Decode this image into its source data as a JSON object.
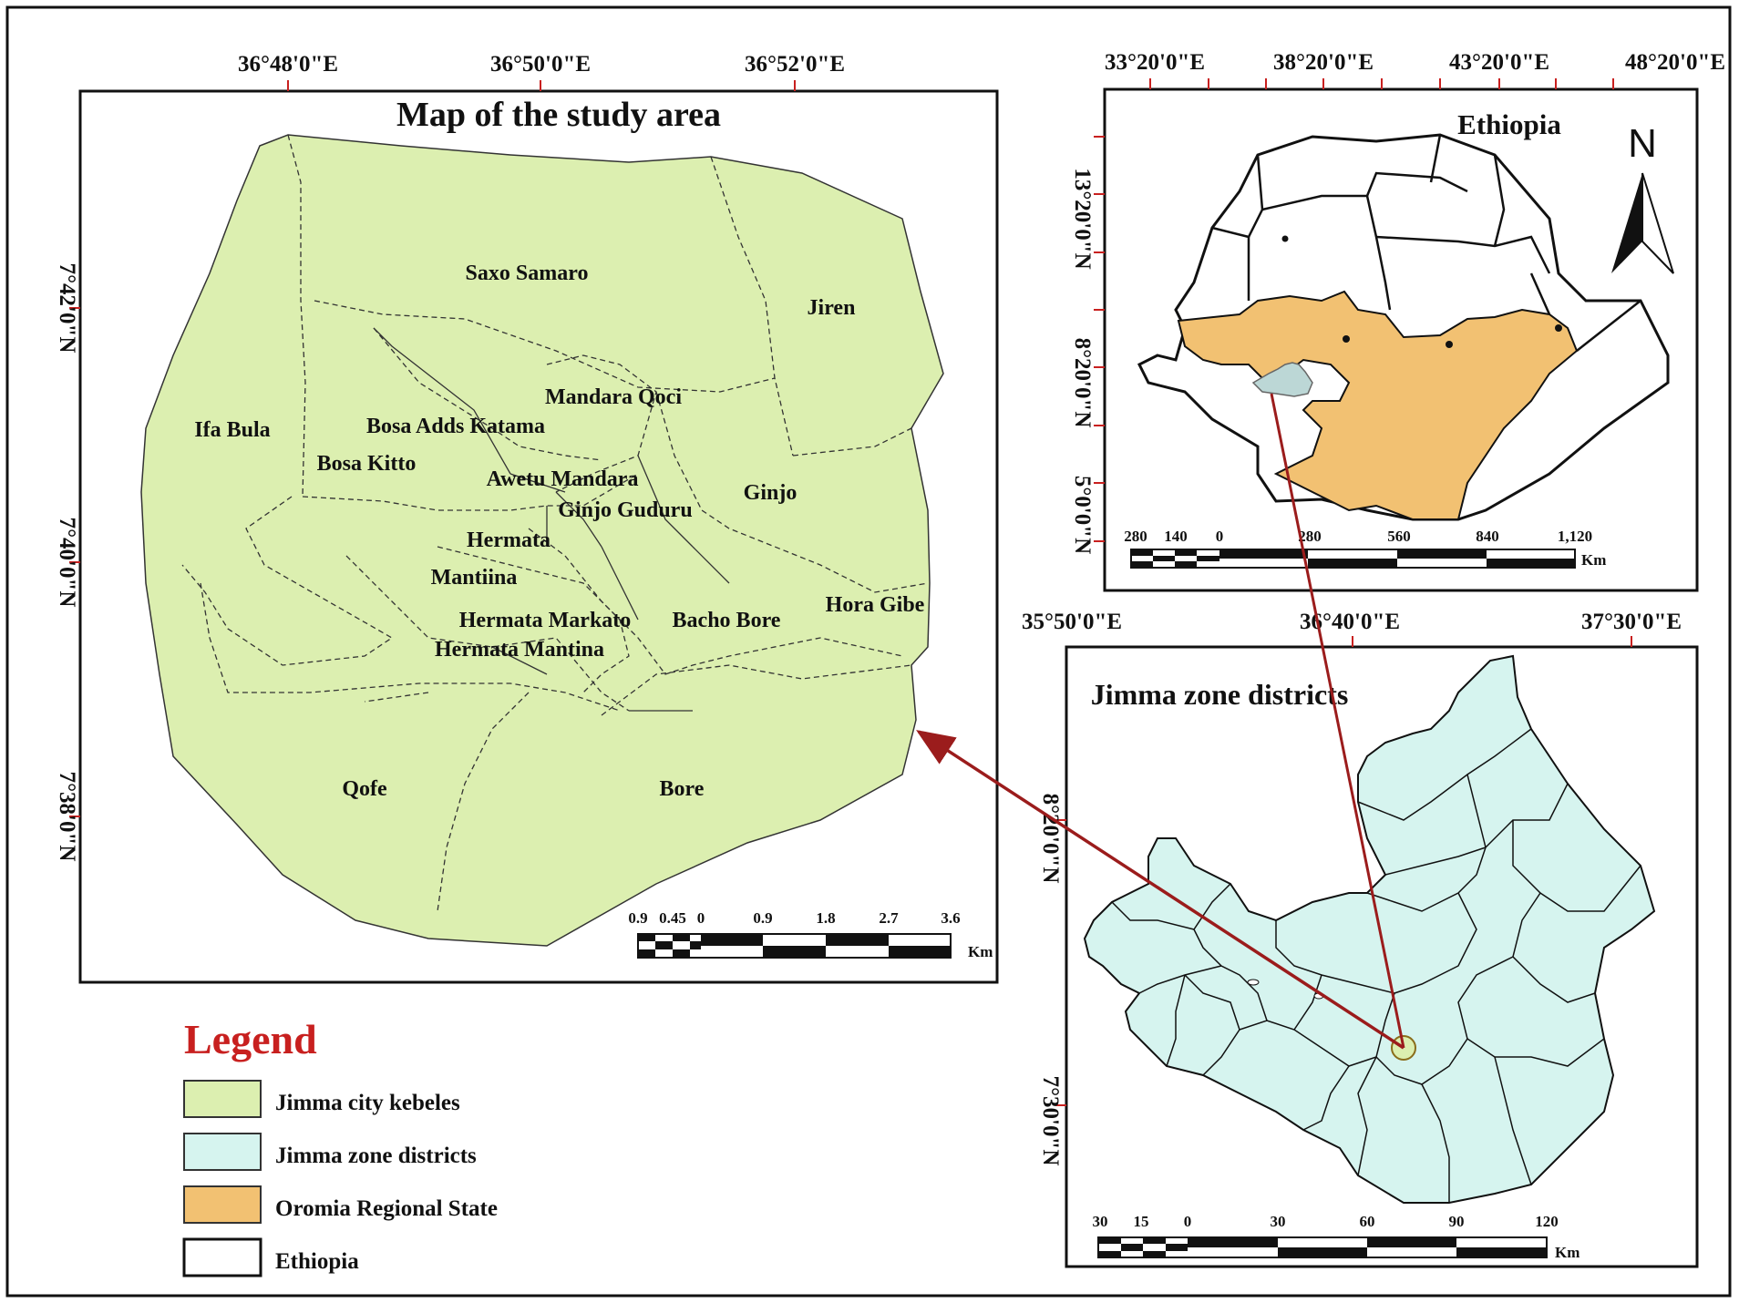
{
  "study_map": {
    "title": "Map of the study area",
    "lon_ticks": [
      "36°48'0\"E",
      "36°50'0\"E",
      "36°52'0\"E"
    ],
    "lat_ticks": [
      "7°42'0\"N",
      "7°40'0\"N",
      "7°38'0\"N"
    ],
    "kebeles": [
      "Saxo Samaro",
      "Jiren",
      "Mandara Qoci",
      "Ifa Bula",
      "Bosa Adds Katama",
      "Bosa Kitto",
      "Awetu Mandara",
      "Ginjo",
      "Ginjo Guduru",
      "Hermata",
      "Mantiina",
      "Hermata Markato",
      "Bacho Bore",
      "Hora Gibe",
      "Hermata Mantina",
      "Qofe",
      "Bore"
    ],
    "scalebar": {
      "ticks": [
        "0.9",
        "0.45",
        "0",
        "0.9",
        "1.8",
        "2.7",
        "3.6"
      ],
      "unit": "Km"
    },
    "fill_color": "#dcefb0"
  },
  "ethiopia_map": {
    "title": "Ethiopia",
    "north_label": "N",
    "lon_ticks": [
      "33°20'0\"E",
      "38°20'0\"E",
      "43°20'0\"E",
      "48°20'0\"E"
    ],
    "lat_ticks": [
      "13°20'0\"N",
      "8°20'0\"N",
      "5°0'0\"N"
    ],
    "scalebar": {
      "ticks": [
        "280",
        "140",
        "0",
        "280",
        "560",
        "840",
        "1,120"
      ],
      "unit": "Km"
    },
    "oromia_color": "#f2c172"
  },
  "jimma_map": {
    "title": "Jimma zone districts",
    "lon_ticks": [
      "35°50'0\"E",
      "36°40'0\"E",
      "37°30'0\"E"
    ],
    "lat_ticks": [
      "8°20'0\"N",
      "7°30'0\"N"
    ],
    "scalebar": {
      "ticks": [
        "30",
        "15",
        "0",
        "30",
        "60",
        "90",
        "120"
      ],
      "unit": "Km"
    },
    "fill_color": "#d6f4ef"
  },
  "legend": {
    "title": "Legend",
    "title_color": "#c8201f",
    "items": [
      {
        "label": "Jimma city kebeles",
        "color": "#dcefb0"
      },
      {
        "label": "Jimma zone districts",
        "color": "#d6f4ef"
      },
      {
        "label": "Oromia Regional State",
        "color": "#f2c172"
      },
      {
        "label": "Ethiopia",
        "color": "#ffffff"
      }
    ]
  },
  "arrow_color": "#9b1c1c"
}
